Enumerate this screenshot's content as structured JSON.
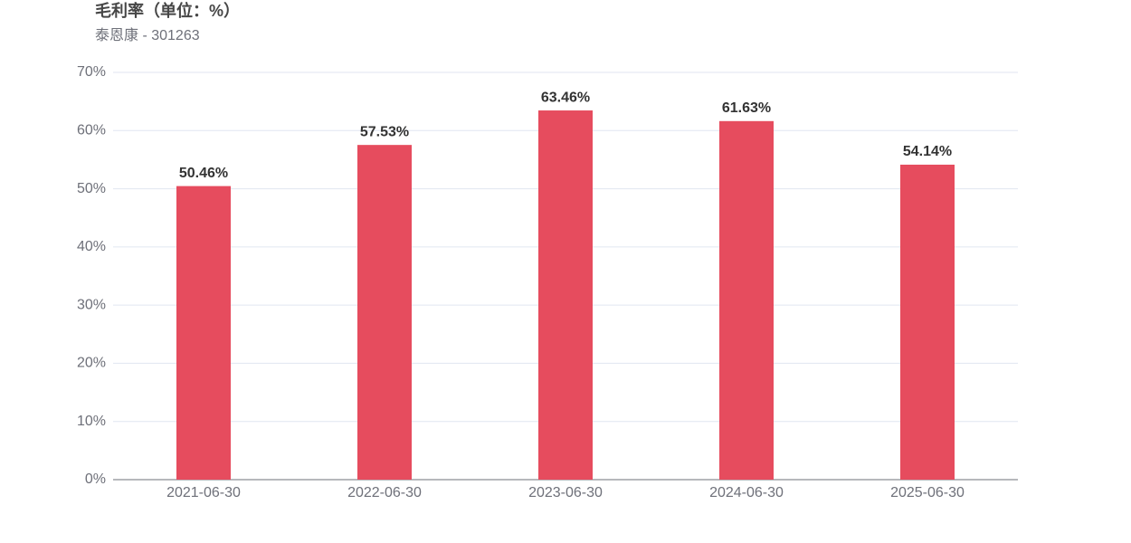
{
  "chart_data": {
    "type": "bar",
    "title": "毛利率（单位：%）",
    "subtitle": "泰恩康 - 301263",
    "categories": [
      "2021-06-30",
      "2022-06-30",
      "2023-06-30",
      "2024-06-30",
      "2025-06-30"
    ],
    "values": [
      50.46,
      57.53,
      63.46,
      61.63,
      54.14
    ],
    "value_labels": [
      "50.46%",
      "57.53%",
      "63.46%",
      "61.63%",
      "54.14%"
    ],
    "color": "#e64c5e",
    "ylim": [
      0,
      70
    ],
    "yticks": [
      {
        "value": 0,
        "label": "0%"
      },
      {
        "value": 10,
        "label": "10%"
      },
      {
        "value": 20,
        "label": "20%"
      },
      {
        "value": 30,
        "label": "30%"
      },
      {
        "value": 40,
        "label": "40%"
      },
      {
        "value": 50,
        "label": "50%"
      },
      {
        "value": 60,
        "label": "60%"
      },
      {
        "value": 70,
        "label": "70%"
      }
    ],
    "grid": true
  }
}
